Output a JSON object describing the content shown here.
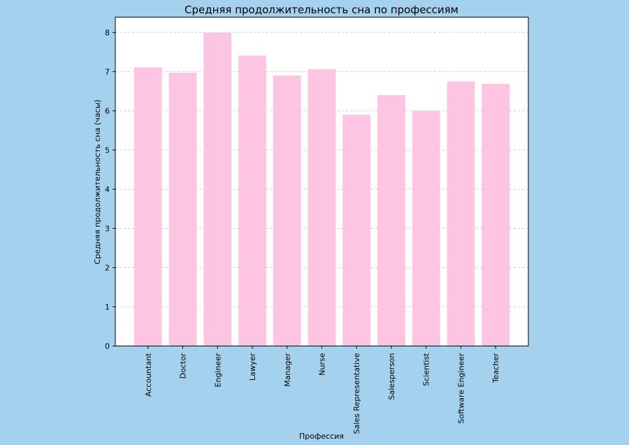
{
  "colors": {
    "background": "#a4d2ee",
    "bar": "#fdc5e2",
    "plot_bg": "#ffffff",
    "grid": "#c8c8c8"
  },
  "chart_data": {
    "type": "bar",
    "title": "Средняя продолжительность сна по профессиям",
    "xlabel": "Профессия",
    "ylabel": "Средняя продолжительность сна (часы)",
    "categories": [
      "Accountant",
      "Doctor",
      "Engineer",
      "Lawyer",
      "Manager",
      "Nurse",
      "Sales Representative",
      "Salesperson",
      "Scientist",
      "Software Engineer",
      "Teacher"
    ],
    "values": [
      7.11,
      6.97,
      7.99,
      7.41,
      6.9,
      7.06,
      5.9,
      6.4,
      6.0,
      6.75,
      6.69
    ],
    "ylim": [
      0,
      8.39
    ],
    "yticks": [
      0,
      1,
      2,
      3,
      4,
      5,
      6,
      7,
      8
    ],
    "grid": "y-dashed"
  }
}
